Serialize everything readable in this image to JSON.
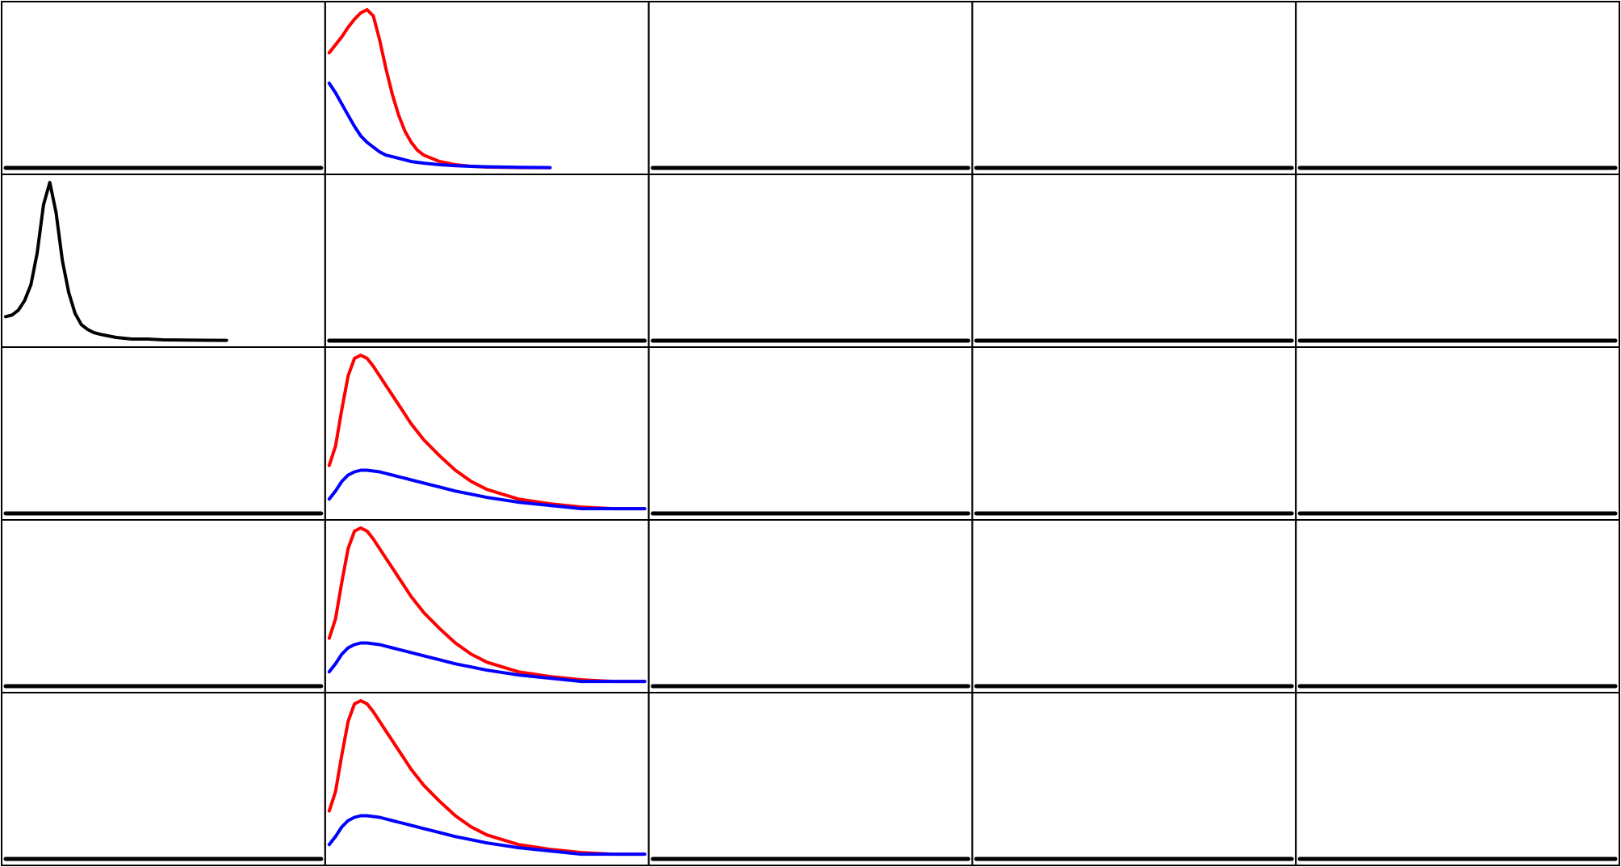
{
  "chart_data": {
    "type": "line",
    "layout": {
      "rows": 5,
      "cols": 5
    },
    "axes_visible": false,
    "grid": false,
    "colors": {
      "red": "#ff0000",
      "blue": "#0000ff",
      "black": "#000000"
    },
    "ylim": [
      0,
      1
    ],
    "x": [
      0,
      0.02,
      0.04,
      0.06,
      0.08,
      0.1,
      0.12,
      0.14,
      0.16,
      0.18,
      0.2,
      0.22,
      0.24,
      0.26,
      0.28,
      0.3,
      0.35,
      0.4,
      0.45,
      0.5,
      0.6,
      0.7,
      0.8,
      0.9,
      1.0
    ],
    "panels": [
      {
        "row": 0,
        "col": 0,
        "series": [
          {
            "color": "#000000",
            "values": [
              0,
              0,
              0,
              0,
              0,
              0,
              0,
              0,
              0,
              0,
              0,
              0,
              0,
              0,
              0,
              0,
              0,
              0,
              0,
              0,
              0,
              0,
              0,
              0,
              0
            ]
          }
        ]
      },
      {
        "row": 0,
        "col": 1,
        "series": [
          {
            "color": "#ff0000",
            "values": [
              0.72,
              0.77,
              0.82,
              0.88,
              0.93,
              0.97,
              0.99,
              0.95,
              0.8,
              0.62,
              0.46,
              0.33,
              0.23,
              0.16,
              0.11,
              0.08,
              0.04,
              0.02,
              0.01,
              0.005,
              0.002,
              0.001,
              null,
              null,
              null
            ]
          },
          {
            "color": "#0000ff",
            "values": [
              0.53,
              0.47,
              0.4,
              0.33,
              0.26,
              0.2,
              0.16,
              0.13,
              0.1,
              0.08,
              0.07,
              0.06,
              0.05,
              0.04,
              0.035,
              0.03,
              0.02,
              0.014,
              0.01,
              0.007,
              0.004,
              0.002,
              null,
              null,
              null
            ]
          }
        ]
      },
      {
        "row": 0,
        "col": 2,
        "series": [
          {
            "color": "#000000",
            "values": [
              0,
              0,
              0,
              0,
              0,
              0,
              0,
              0,
              0,
              0,
              0,
              0,
              0,
              0,
              0,
              0,
              0,
              0,
              0,
              0,
              0,
              0,
              0,
              0,
              0
            ]
          }
        ]
      },
      {
        "row": 0,
        "col": 3,
        "series": [
          {
            "color": "#000000",
            "values": [
              0,
              0,
              0,
              0,
              0,
              0,
              0,
              0,
              0,
              0,
              0,
              0,
              0,
              0,
              0,
              0,
              0,
              0,
              0,
              0,
              0,
              0,
              0,
              0,
              0
            ]
          }
        ]
      },
      {
        "row": 0,
        "col": 4,
        "series": [
          {
            "color": "#000000",
            "values": [
              0,
              0,
              0,
              0,
              0,
              0,
              0,
              0,
              0,
              0,
              0,
              0,
              0,
              0,
              0,
              0,
              0,
              0,
              0,
              0,
              0,
              0,
              0,
              0,
              0
            ]
          }
        ]
      },
      {
        "row": 1,
        "col": 0,
        "series": [
          {
            "color": "#000000",
            "values": [
              0.15,
              0.16,
              0.19,
              0.25,
              0.35,
              0.55,
              0.85,
              0.99,
              0.8,
              0.5,
              0.3,
              0.17,
              0.1,
              0.07,
              0.05,
              0.04,
              0.02,
              0.01,
              0.01,
              0.005,
              0.003,
              0.002,
              null,
              null,
              null
            ]
          }
        ]
      },
      {
        "row": 1,
        "col": 1,
        "series": [
          {
            "color": "#000000",
            "values": [
              0,
              0,
              0,
              0,
              0,
              0,
              0,
              0,
              0,
              0,
              0,
              0,
              0,
              0,
              0,
              0,
              0,
              0,
              0,
              0,
              0,
              0,
              0,
              0,
              0
            ]
          }
        ]
      },
      {
        "row": 1,
        "col": 2,
        "series": [
          {
            "color": "#000000",
            "values": [
              0,
              0,
              0,
              0,
              0,
              0,
              0,
              0,
              0,
              0,
              0,
              0,
              0,
              0,
              0,
              0,
              0,
              0,
              0,
              0,
              0,
              0,
              0,
              0,
              0
            ]
          }
        ]
      },
      {
        "row": 1,
        "col": 3,
        "series": [
          {
            "color": "#000000",
            "values": [
              0,
              0,
              0,
              0,
              0,
              0,
              0,
              0,
              0,
              0,
              0,
              0,
              0,
              0,
              0,
              0,
              0,
              0,
              0,
              0,
              0,
              0,
              0,
              0,
              0
            ]
          }
        ]
      },
      {
        "row": 1,
        "col": 4,
        "series": [
          {
            "color": "#000000",
            "values": [
              0,
              0,
              0,
              0,
              0,
              0,
              0,
              0,
              0,
              0,
              0,
              0,
              0,
              0,
              0,
              0,
              0,
              0,
              0,
              0,
              0,
              0,
              0,
              0,
              0
            ]
          }
        ]
      },
      {
        "row": 2,
        "col": 0,
        "series": [
          {
            "color": "#000000",
            "values": [
              0,
              0,
              0,
              0,
              0,
              0,
              0,
              0,
              0,
              0,
              0,
              0,
              0,
              0,
              0,
              0,
              0,
              0,
              0,
              0,
              0,
              0,
              0,
              0,
              0
            ]
          }
        ]
      },
      {
        "row": 2,
        "col": 1,
        "series": [
          {
            "color": "#ff0000",
            "values": [
              0.3,
              0.42,
              0.65,
              0.86,
              0.97,
              0.99,
              0.97,
              0.92,
              0.86,
              0.8,
              0.74,
              0.68,
              0.62,
              0.56,
              0.51,
              0.46,
              0.36,
              0.27,
              0.2,
              0.15,
              0.09,
              0.06,
              0.04,
              0.03,
              0.03
            ]
          },
          {
            "color": "#0000ff",
            "values": [
              0.09,
              0.14,
              0.2,
              0.24,
              0.26,
              0.27,
              0.27,
              0.265,
              0.26,
              0.25,
              0.24,
              0.23,
              0.22,
              0.21,
              0.2,
              0.19,
              0.165,
              0.14,
              0.12,
              0.1,
              0.07,
              0.05,
              0.03,
              0.03,
              0.03
            ]
          }
        ]
      },
      {
        "row": 2,
        "col": 2,
        "series": [
          {
            "color": "#000000",
            "values": [
              0,
              0,
              0,
              0,
              0,
              0,
              0,
              0,
              0,
              0,
              0,
              0,
              0,
              0,
              0,
              0,
              0,
              0,
              0,
              0,
              0,
              0,
              0,
              0,
              0
            ]
          }
        ]
      },
      {
        "row": 2,
        "col": 3,
        "series": [
          {
            "color": "#000000",
            "values": [
              0,
              0,
              0,
              0,
              0,
              0,
              0,
              0,
              0,
              0,
              0,
              0,
              0,
              0,
              0,
              0,
              0,
              0,
              0,
              0,
              0,
              0,
              0,
              0,
              0
            ]
          }
        ]
      },
      {
        "row": 2,
        "col": 4,
        "series": [
          {
            "color": "#000000",
            "values": [
              0,
              0,
              0,
              0,
              0,
              0,
              0,
              0,
              0,
              0,
              0,
              0,
              0,
              0,
              0,
              0,
              0,
              0,
              0,
              0,
              0,
              0,
              0,
              0,
              0
            ]
          }
        ]
      },
      {
        "row": 3,
        "col": 0,
        "series": [
          {
            "color": "#000000",
            "values": [
              0,
              0,
              0,
              0,
              0,
              0,
              0,
              0,
              0,
              0,
              0,
              0,
              0,
              0,
              0,
              0,
              0,
              0,
              0,
              0,
              0,
              0,
              0,
              0,
              0
            ]
          }
        ]
      },
      {
        "row": 3,
        "col": 1,
        "series": [
          {
            "color": "#ff0000",
            "values": [
              0.3,
              0.42,
              0.65,
              0.86,
              0.97,
              0.99,
              0.97,
              0.92,
              0.86,
              0.8,
              0.74,
              0.68,
              0.62,
              0.56,
              0.51,
              0.46,
              0.36,
              0.27,
              0.2,
              0.15,
              0.09,
              0.06,
              0.04,
              0.03,
              0.03
            ]
          },
          {
            "color": "#0000ff",
            "values": [
              0.09,
              0.14,
              0.2,
              0.24,
              0.26,
              0.27,
              0.27,
              0.265,
              0.26,
              0.25,
              0.24,
              0.23,
              0.22,
              0.21,
              0.2,
              0.19,
              0.165,
              0.14,
              0.12,
              0.1,
              0.07,
              0.05,
              0.03,
              0.03,
              0.03
            ]
          }
        ]
      },
      {
        "row": 3,
        "col": 2,
        "series": [
          {
            "color": "#000000",
            "values": [
              0,
              0,
              0,
              0,
              0,
              0,
              0,
              0,
              0,
              0,
              0,
              0,
              0,
              0,
              0,
              0,
              0,
              0,
              0,
              0,
              0,
              0,
              0,
              0,
              0
            ]
          }
        ]
      },
      {
        "row": 3,
        "col": 3,
        "series": [
          {
            "color": "#000000",
            "values": [
              0,
              0,
              0,
              0,
              0,
              0,
              0,
              0,
              0,
              0,
              0,
              0,
              0,
              0,
              0,
              0,
              0,
              0,
              0,
              0,
              0,
              0,
              0,
              0,
              0
            ]
          }
        ]
      },
      {
        "row": 3,
        "col": 4,
        "series": [
          {
            "color": "#000000",
            "values": [
              0,
              0,
              0,
              0,
              0,
              0,
              0,
              0,
              0,
              0,
              0,
              0,
              0,
              0,
              0,
              0,
              0,
              0,
              0,
              0,
              0,
              0,
              0,
              0,
              0
            ]
          }
        ]
      },
      {
        "row": 4,
        "col": 0,
        "series": [
          {
            "color": "#000000",
            "values": [
              0,
              0,
              0,
              0,
              0,
              0,
              0,
              0,
              0,
              0,
              0,
              0,
              0,
              0,
              0,
              0,
              0,
              0,
              0,
              0,
              0,
              0,
              0,
              0,
              0
            ]
          }
        ]
      },
      {
        "row": 4,
        "col": 1,
        "series": [
          {
            "color": "#ff0000",
            "values": [
              0.3,
              0.42,
              0.65,
              0.86,
              0.97,
              0.99,
              0.97,
              0.92,
              0.86,
              0.8,
              0.74,
              0.68,
              0.62,
              0.56,
              0.51,
              0.46,
              0.36,
              0.27,
              0.2,
              0.15,
              0.09,
              0.06,
              0.04,
              0.03,
              0.03
            ]
          },
          {
            "color": "#0000ff",
            "values": [
              0.09,
              0.14,
              0.2,
              0.24,
              0.26,
              0.27,
              0.27,
              0.265,
              0.26,
              0.25,
              0.24,
              0.23,
              0.22,
              0.21,
              0.2,
              0.19,
              0.165,
              0.14,
              0.12,
              0.1,
              0.07,
              0.05,
              0.03,
              0.03,
              0.03
            ]
          }
        ]
      },
      {
        "row": 4,
        "col": 2,
        "series": [
          {
            "color": "#000000",
            "values": [
              0,
              0,
              0,
              0,
              0,
              0,
              0,
              0,
              0,
              0,
              0,
              0,
              0,
              0,
              0,
              0,
              0,
              0,
              0,
              0,
              0,
              0,
              0,
              0,
              0
            ]
          }
        ]
      },
      {
        "row": 4,
        "col": 3,
        "series": [
          {
            "color": "#000000",
            "values": [
              0,
              0,
              0,
              0,
              0,
              0,
              0,
              0,
              0,
              0,
              0,
              0,
              0,
              0,
              0,
              0,
              0,
              0,
              0,
              0,
              0,
              0,
              0,
              0,
              0
            ]
          }
        ]
      },
      {
        "row": 4,
        "col": 4,
        "series": [
          {
            "color": "#000000",
            "values": [
              0,
              0,
              0,
              0,
              0,
              0,
              0,
              0,
              0,
              0,
              0,
              0,
              0,
              0,
              0,
              0,
              0,
              0,
              0,
              0,
              0,
              0,
              0,
              0,
              0
            ]
          }
        ]
      }
    ]
  }
}
